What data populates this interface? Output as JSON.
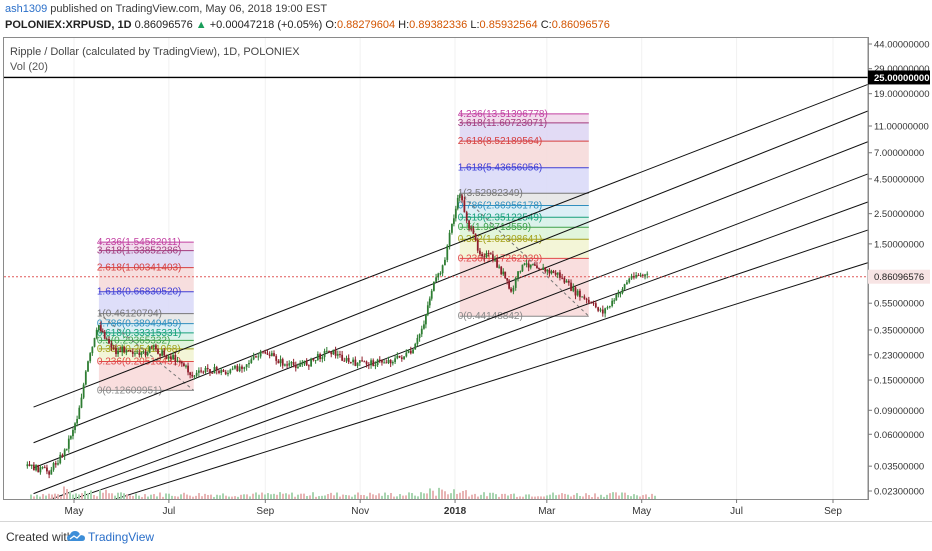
{
  "header": {
    "author": "ash1309",
    "published_text": "published on TradingView.com, May 06, 2018 19:00 EST",
    "symbol": "POLONIEX:XRPUSD, 1D",
    "last": "0.86096576",
    "change_arrow": "▲",
    "change": "+0.00047218 (+0.05%)",
    "o_label": "O:",
    "o_value": "0.88279604",
    "h_label": "H:",
    "h_value": "0.89382336",
    "l_label": "L:",
    "l_value": "0.85932564",
    "c_label": "C:",
    "c_value": "0.86096576"
  },
  "legend": {
    "title": "Ripple / Dollar (calculated by TradingView), 1D, POLONIEX",
    "volume": "Vol (20)"
  },
  "footer": {
    "created_with": "Created with",
    "brand": "TradingView",
    "logo_icon": "tradingview-cloud-icon"
  },
  "colors": {
    "up": "#2e7d32",
    "down": "#8e1d2a",
    "horizontal_line": "#000000",
    "current_price_line": "#e05858",
    "price_tag": "#f7e4e4",
    "link": "#2a6fc9"
  },
  "chart_data": {
    "type": "candlestick",
    "scale": "log",
    "ylim": [
      0.02,
      44
    ],
    "y_ticks": [
      "44.00000000",
      "29.00000000",
      "19.00000000",
      "11.00000000",
      "7.00000000",
      "4.50000000",
      "2.50000000",
      "1.50000000",
      "0.86096576",
      "0.55000000",
      "0.35000000",
      "0.23000000",
      "0.15000000",
      "0.09000000",
      "0.06000000",
      "0.03500000",
      "0.02300000"
    ],
    "x_ticks": [
      "May",
      "Jul",
      "Sep",
      "Nov",
      "2018",
      "Mar",
      "May",
      "Jul",
      "Sep"
    ],
    "horizontal_line": {
      "value": 25,
      "label": "25.00000000"
    },
    "current_price": {
      "value": 0.86096576,
      "label": "0.86096576"
    },
    "price_path": [
      {
        "date": "2017-04-01",
        "price": 0.035
      },
      {
        "date": "2017-04-15",
        "price": 0.032
      },
      {
        "date": "2017-04-25",
        "price": 0.045
      },
      {
        "date": "2017-05-03",
        "price": 0.08
      },
      {
        "date": "2017-05-10",
        "price": 0.2
      },
      {
        "date": "2017-05-17",
        "price": 0.38
      },
      {
        "date": "2017-05-22",
        "price": 0.3
      },
      {
        "date": "2017-05-28",
        "price": 0.24
      },
      {
        "date": "2017-06-05",
        "price": 0.26
      },
      {
        "date": "2017-06-12",
        "price": 0.22
      },
      {
        "date": "2017-06-20",
        "price": 0.26
      },
      {
        "date": "2017-06-28",
        "price": 0.23
      },
      {
        "date": "2017-07-08",
        "price": 0.21
      },
      {
        "date": "2017-07-16",
        "price": 0.16
      },
      {
        "date": "2017-07-26",
        "price": 0.18
      },
      {
        "date": "2017-08-08",
        "price": 0.17
      },
      {
        "date": "2017-08-20",
        "price": 0.2
      },
      {
        "date": "2017-09-01",
        "price": 0.24
      },
      {
        "date": "2017-09-15",
        "price": 0.19
      },
      {
        "date": "2017-09-29",
        "price": 0.2
      },
      {
        "date": "2017-10-12",
        "price": 0.25
      },
      {
        "date": "2017-10-26",
        "price": 0.2
      },
      {
        "date": "2017-11-08",
        "price": 0.2
      },
      {
        "date": "2017-11-22",
        "price": 0.21
      },
      {
        "date": "2017-12-05",
        "price": 0.24
      },
      {
        "date": "2017-12-12",
        "price": 0.4
      },
      {
        "date": "2017-12-17",
        "price": 0.7
      },
      {
        "date": "2017-12-24",
        "price": 1.0
      },
      {
        "date": "2017-12-30",
        "price": 2.1
      },
      {
        "date": "2018-01-04",
        "price": 3.5
      },
      {
        "date": "2018-01-10",
        "price": 2.0
      },
      {
        "date": "2018-01-17",
        "price": 1.3
      },
      {
        "date": "2018-01-24",
        "price": 1.2
      },
      {
        "date": "2018-02-01",
        "price": 0.9
      },
      {
        "date": "2018-02-06",
        "price": 0.65
      },
      {
        "date": "2018-02-12",
        "price": 1.0
      },
      {
        "date": "2018-02-20",
        "price": 1.1
      },
      {
        "date": "2018-02-28",
        "price": 0.95
      },
      {
        "date": "2018-03-08",
        "price": 0.9
      },
      {
        "date": "2018-03-18",
        "price": 0.68
      },
      {
        "date": "2018-03-28",
        "price": 0.55
      },
      {
        "date": "2018-04-06",
        "price": 0.48
      },
      {
        "date": "2018-04-12",
        "price": 0.55
      },
      {
        "date": "2018-04-20",
        "price": 0.75
      },
      {
        "date": "2018-04-26",
        "price": 0.9
      },
      {
        "date": "2018-05-06",
        "price": 0.86
      }
    ],
    "channel_lines": [
      {
        "start": {
          "date": "2017-04-05",
          "price": 0.095
        },
        "end": {
          "date": "2018-10-05",
          "price": 25
        }
      },
      {
        "start": {
          "date": "2017-04-05",
          "price": 0.052
        },
        "end": {
          "date": "2018-10-05",
          "price": 16
        }
      },
      {
        "start": {
          "date": "2017-04-05",
          "price": 0.034
        },
        "end": {
          "date": "2018-10-05",
          "price": 9.5
        }
      },
      {
        "start": {
          "date": "2017-04-05",
          "price": 0.022
        },
        "end": {
          "date": "2018-10-05",
          "price": 5.5
        }
      },
      {
        "start": {
          "date": "2017-04-05",
          "price": 0.018
        },
        "end": {
          "date": "2018-10-05",
          "price": 3.4
        }
      },
      {
        "start": {
          "date": "2017-04-05",
          "price": 0.016
        },
        "end": {
          "date": "2018-10-05",
          "price": 2.1
        }
      },
      {
        "start": {
          "date": "2017-04-05",
          "price": 0.013
        },
        "end": {
          "date": "2018-10-05",
          "price": 1.2
        }
      }
    ],
    "fib_sets": [
      {
        "start": "2017-05-17",
        "end": "2017-07-17",
        "levels": [
          {
            "label": "4.236(1.54562011)",
            "value": 1.54562011,
            "color": "#c23fa1",
            "fill": "#f0d6ea"
          },
          {
            "label": "3.618(1.33852286)",
            "value": 1.33852286,
            "color": "#a23b7e",
            "fill": "#ddd5f3"
          },
          {
            "label": "2.618(1.00341403)",
            "value": 1.00341403,
            "color": "#d63f3f",
            "fill": "#f6d8d8"
          },
          {
            "label": "1.618(0.66830520)",
            "value": 0.6683052,
            "color": "#3f3fd6",
            "fill": "#d8d8f8"
          },
          {
            "label": "1(0.46120794)",
            "value": 0.46120794,
            "color": "#777777",
            "fill": "#e4e4e4"
          },
          {
            "label": "0.786(0.38949459)",
            "value": 0.38949459,
            "color": "#2f8fbf",
            "fill": "#d6ecf5"
          },
          {
            "label": "0.618(0.33315331)",
            "value": 0.33315331,
            "color": "#17a07a",
            "fill": "#d5f0e6"
          },
          {
            "label": "0.5(0.29365332)",
            "value": 0.29365332,
            "color": "#3fa04b",
            "fill": "#dcf3d6"
          },
          {
            "label": "0.382(0.25411068)",
            "value": 0.25411068,
            "color": "#a3a11a",
            "fill": "#f1f3d0"
          },
          {
            "label": "0.236(0.20518431)",
            "value": 0.20518431,
            "color": "#e04848",
            "fill": "#f8d8d8"
          },
          {
            "label": "0(0.12609951)",
            "value": 0.12609951,
            "color": "#888888",
            "fill": "#f8d8d8"
          }
        ]
      },
      {
        "start": "2018-01-04",
        "end": "2018-03-28",
        "levels": [
          {
            "label": "4.236(13.51396778)",
            "value": 13.51396778,
            "color": "#c23fa1",
            "fill": "#f0d6ea"
          },
          {
            "label": "3.618(11.60723071)",
            "value": 11.60723071,
            "color": "#a23b7e",
            "fill": "#ddd5f3"
          },
          {
            "label": "2.618(8.52189564)",
            "value": 8.52189564,
            "color": "#d63f3f",
            "fill": "#f6d8d8"
          },
          {
            "label": "1.618(5.43656056)",
            "value": 5.43656056,
            "color": "#3f3fd6",
            "fill": "#d8d8f8"
          },
          {
            "label": "1(3.52982349)",
            "value": 3.52982349,
            "color": "#777777",
            "fill": "#e4e4e4"
          },
          {
            "label": "0.786(2.86956178)",
            "value": 2.86956178,
            "color": "#2f8fbf",
            "fill": "#d6ecf5"
          },
          {
            "label": "0.618(2.35122549)",
            "value": 2.35122549,
            "color": "#17a07a",
            "fill": "#d5f0e6"
          },
          {
            "label": "0.5(1.98713559)",
            "value": 1.98713559,
            "color": "#3fa04b",
            "fill": "#dcf3d6"
          },
          {
            "label": "0.382(1.62308641)",
            "value": 1.62308641,
            "color": "#a3a11a",
            "fill": "#f1f3d0"
          },
          {
            "label": "0.236(1.17262939)",
            "value": 1.17262939,
            "color": "#e04848",
            "fill": "#f8d8d8"
          },
          {
            "label": "0(0.44148842)",
            "value": 0.44148842,
            "color": "#888888",
            "fill": "#f8d8d8"
          }
        ]
      }
    ]
  }
}
